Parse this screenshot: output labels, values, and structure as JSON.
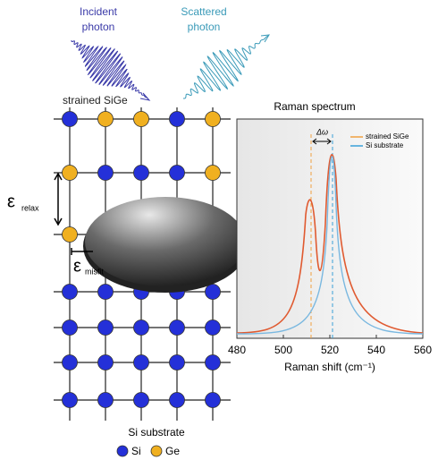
{
  "photons": {
    "incident": [
      "Incident",
      "photon"
    ],
    "scattered": [
      "Scattered",
      "photon"
    ]
  },
  "lattice": {
    "label": "strained SiGe",
    "relax_symbol": "ε",
    "relax_sub": "relax",
    "misfit_symbol": "ε",
    "misfit_sub": "misfit"
  },
  "spectrum": {
    "title": "Raman spectrum",
    "x_label": "Raman shift (cm⁻¹)",
    "xlim": [
      480,
      560
    ],
    "xticks": [
      480,
      500,
      520,
      540,
      560
    ],
    "legend": [
      "strained SiGe",
      "Si substrate"
    ],
    "delta_label": "Δω"
  },
  "substrate_label": "Si substrate",
  "legend": [
    "Si",
    "Ge"
  ]
}
